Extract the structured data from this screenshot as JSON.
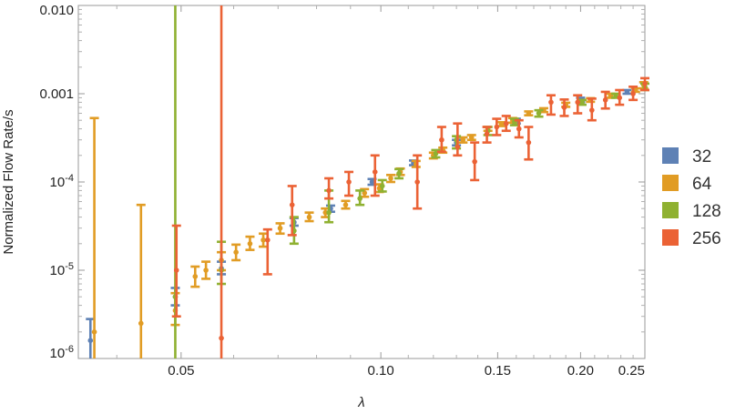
{
  "chart_data": {
    "type": "scatter",
    "xlabel": "λ",
    "ylabel": "Normalized Flow Rate/s",
    "x_scale": "log",
    "y_scale": "log",
    "xlim": [
      0.035,
      0.25
    ],
    "ylim": [
      1e-06,
      0.01
    ],
    "x_ticks": [
      {
        "value": 0.05,
        "label": "0.05"
      },
      {
        "value": 0.1,
        "label": "0.10"
      },
      {
        "value": 0.15,
        "label": "0.15"
      },
      {
        "value": 0.2,
        "label": "0.20"
      },
      {
        "value": 0.25,
        "label": "0.25"
      }
    ],
    "y_ticks": [
      {
        "value": 1e-06,
        "label": "10",
        "sup": "-6"
      },
      {
        "value": 1e-05,
        "label": "10",
        "sup": "-5"
      },
      {
        "value": 0.0001,
        "label": "10",
        "sup": "-4"
      },
      {
        "value": 0.001,
        "label": "0.001"
      },
      {
        "value": 0.01,
        "label": "0.010"
      }
    ],
    "grid": false,
    "legend_position": "right",
    "series": [
      {
        "name": "32",
        "color": "#5e81b5",
        "points": [
          {
            "x": 0.0365,
            "y": 1.6e-06,
            "lo": 1e-06,
            "hi": 2.8e-06
          },
          {
            "x": 0.049,
            "y": 5e-06,
            "lo": 4e-06,
            "hi": 6.3e-06
          },
          {
            "x": 0.0575,
            "y": 1.05e-05,
            "lo": 9e-06,
            "hi": 1.25e-05
          },
          {
            "x": 0.074,
            "y": 3.5e-05,
            "lo": 3.2e-05,
            "hi": 3.9e-05
          },
          {
            "x": 0.084,
            "y": 5e-05,
            "lo": 4.6e-05,
            "hi": 5.4e-05
          },
          {
            "x": 0.097,
            "y": 0.0001,
            "lo": 9.3e-05,
            "hi": 0.000108
          },
          {
            "x": 0.112,
            "y": 0.000165,
            "lo": 0.000155,
            "hi": 0.000175
          },
          {
            "x": 0.13,
            "y": 0.00028,
            "lo": 0.00026,
            "hi": 0.0003
          },
          {
            "x": 0.16,
            "y": 0.00049,
            "lo": 0.00046,
            "hi": 0.00052
          },
          {
            "x": 0.2,
            "y": 0.00085,
            "lo": 0.0008,
            "hi": 0.0009
          },
          {
            "x": 0.235,
            "y": 0.00105,
            "lo": 0.001,
            "hi": 0.0011
          }
        ]
      },
      {
        "name": "64",
        "color": "#e19c24",
        "points": [
          {
            "x": 0.037,
            "y": 2e-06,
            "lo": 1e-06,
            "hi": 0.00053
          },
          {
            "x": 0.0435,
            "y": 2.5e-06,
            "lo": 1e-06,
            "hi": 5.5e-05
          },
          {
            "x": 0.049,
            "y": 3.5e-06,
            "lo": 2.4e-06,
            "hi": 5.5e-06
          },
          {
            "x": 0.0525,
            "y": 8.5e-06,
            "lo": 6.5e-06,
            "hi": 1.1e-05
          },
          {
            "x": 0.0545,
            "y": 1e-05,
            "lo": 8e-06,
            "hi": 1.25e-05
          },
          {
            "x": 0.0575,
            "y": 1.3e-05,
            "lo": 1e-05,
            "hi": 1.6e-05
          },
          {
            "x": 0.0605,
            "y": 1.6e-05,
            "lo": 1.3e-05,
            "hi": 1.95e-05
          },
          {
            "x": 0.0635,
            "y": 2e-05,
            "lo": 1.7e-05,
            "hi": 2.4e-05
          },
          {
            "x": 0.0665,
            "y": 2.2e-05,
            "lo": 1.85e-05,
            "hi": 2.6e-05
          },
          {
            "x": 0.0705,
            "y": 3e-05,
            "lo": 2.6e-05,
            "hi": 3.4e-05
          },
          {
            "x": 0.078,
            "y": 4e-05,
            "lo": 3.6e-05,
            "hi": 4.5e-05
          },
          {
            "x": 0.0825,
            "y": 4.5e-05,
            "lo": 4e-05,
            "hi": 5e-05
          },
          {
            "x": 0.0885,
            "y": 5.5e-05,
            "lo": 5e-05,
            "hi": 6.1e-05
          },
          {
            "x": 0.0945,
            "y": 7.5e-05,
            "lo": 6.8e-05,
            "hi": 8.3e-05
          },
          {
            "x": 0.0995,
            "y": 8.5e-05,
            "lo": 7.7e-05,
            "hi": 9.4e-05
          },
          {
            "x": 0.1035,
            "y": 0.00011,
            "lo": 0.0001,
            "hi": 0.00012
          },
          {
            "x": 0.107,
            "y": 0.00013,
            "lo": 0.00012,
            "hi": 0.000142
          },
          {
            "x": 0.113,
            "y": 0.00016,
            "lo": 0.000148,
            "hi": 0.000173
          },
          {
            "x": 0.12,
            "y": 0.0002,
            "lo": 0.000185,
            "hi": 0.000215
          },
          {
            "x": 0.124,
            "y": 0.00023,
            "lo": 0.000215,
            "hi": 0.000245
          },
          {
            "x": 0.133,
            "y": 0.0003,
            "lo": 0.00028,
            "hi": 0.00032
          },
          {
            "x": 0.137,
            "y": 0.00032,
            "lo": 0.0003,
            "hi": 0.00034
          },
          {
            "x": 0.145,
            "y": 0.0004,
            "lo": 0.00038,
            "hi": 0.00042
          },
          {
            "x": 0.152,
            "y": 0.00045,
            "lo": 0.00043,
            "hi": 0.000475
          },
          {
            "x": 0.158,
            "y": 0.0005,
            "lo": 0.00047,
            "hi": 0.00053
          },
          {
            "x": 0.167,
            "y": 0.0006,
            "lo": 0.00057,
            "hi": 0.00063
          },
          {
            "x": 0.176,
            "y": 0.00065,
            "lo": 0.00062,
            "hi": 0.000685
          },
          {
            "x": 0.19,
            "y": 0.00075,
            "lo": 0.00071,
            "hi": 0.00079
          },
          {
            "x": 0.207,
            "y": 0.00085,
            "lo": 0.00081,
            "hi": 0.00089
          },
          {
            "x": 0.222,
            "y": 0.00095,
            "lo": 0.0009,
            "hi": 0.001
          },
          {
            "x": 0.242,
            "y": 0.0011,
            "lo": 0.00105,
            "hi": 0.00115
          },
          {
            "x": 0.249,
            "y": 0.00125,
            "lo": 0.00115,
            "hi": 0.00135
          }
        ]
      },
      {
        "name": "128",
        "color": "#8fb131",
        "points": [
          {
            "x": 0.049,
            "y": 5e-06,
            "lo": 1e-06,
            "hi": 0.01
          },
          {
            "x": 0.0575,
            "y": 1e-05,
            "lo": 7e-06,
            "hi": 2.1e-05
          },
          {
            "x": 0.074,
            "y": 2.8e-05,
            "lo": 2e-05,
            "hi": 4e-05
          },
          {
            "x": 0.0835,
            "y": 4.5e-05,
            "lo": 3.5e-05,
            "hi": 8e-05
          },
          {
            "x": 0.093,
            "y": 6.5e-05,
            "lo": 5.5e-05,
            "hi": 8e-05
          },
          {
            "x": 0.1005,
            "y": 9e-05,
            "lo": 7.8e-05,
            "hi": 0.000105
          },
          {
            "x": 0.1065,
            "y": 0.000125,
            "lo": 0.00011,
            "hi": 0.00014
          },
          {
            "x": 0.121,
            "y": 0.00021,
            "lo": 0.00019,
            "hi": 0.00023
          },
          {
            "x": 0.13,
            "y": 0.0003,
            "lo": 0.00024,
            "hi": 0.00033
          },
          {
            "x": 0.145,
            "y": 0.00038,
            "lo": 0.00034,
            "hi": 0.00042
          },
          {
            "x": 0.159,
            "y": 0.00048,
            "lo": 0.00044,
            "hi": 0.00052
          },
          {
            "x": 0.173,
            "y": 0.0006,
            "lo": 0.00055,
            "hi": 0.00065
          },
          {
            "x": 0.201,
            "y": 0.0008,
            "lo": 0.00075,
            "hi": 0.00085
          },
          {
            "x": 0.226,
            "y": 0.00095,
            "lo": 0.0009,
            "hi": 0.001
          },
          {
            "x": 0.25,
            "y": 0.0012,
            "lo": 0.0011,
            "hi": 0.0013
          }
        ]
      },
      {
        "name": "256",
        "color": "#eb6235",
        "points": [
          {
            "x": 0.0492,
            "y": 1e-05,
            "lo": 3e-06,
            "hi": 3.2e-05
          },
          {
            "x": 0.0575,
            "y": 1.7e-06,
            "lo": 1e-06,
            "hi": 0.01
          },
          {
            "x": 0.0675,
            "y": 2.2e-05,
            "lo": 9e-06,
            "hi": 2.9e-05
          },
          {
            "x": 0.0735,
            "y": 5.5e-05,
            "lo": 2.5e-05,
            "hi": 9e-05
          },
          {
            "x": 0.0835,
            "y": 8e-05,
            "lo": 6.5e-05,
            "hi": 0.00011
          },
          {
            "x": 0.0895,
            "y": 0.0001,
            "lo": 7e-05,
            "hi": 0.00013
          },
          {
            "x": 0.098,
            "y": 0.00013,
            "lo": 7e-05,
            "hi": 0.0002
          },
          {
            "x": 0.1135,
            "y": 0.0001,
            "lo": 5e-05,
            "hi": 0.0002
          },
          {
            "x": 0.1235,
            "y": 0.0003,
            "lo": 0.00022,
            "hi": 0.00042
          },
          {
            "x": 0.1305,
            "y": 0.00025,
            "lo": 0.0002,
            "hi": 0.00046
          },
          {
            "x": 0.1385,
            "y": 0.00017,
            "lo": 0.000105,
            "hi": 0.00028
          },
          {
            "x": 0.1445,
            "y": 0.00035,
            "lo": 0.00028,
            "hi": 0.00042
          },
          {
            "x": 0.1495,
            "y": 0.00042,
            "lo": 0.00034,
            "hi": 0.00052
          },
          {
            "x": 0.1545,
            "y": 0.00046,
            "lo": 0.00038,
            "hi": 0.00056
          },
          {
            "x": 0.1615,
            "y": 0.0004,
            "lo": 0.00032,
            "hi": 0.0005
          },
          {
            "x": 0.167,
            "y": 0.00028,
            "lo": 0.00018,
            "hi": 0.00042
          },
          {
            "x": 0.1805,
            "y": 0.0008,
            "lo": 0.00058,
            "hi": 0.00096
          },
          {
            "x": 0.189,
            "y": 0.0007,
            "lo": 0.00056,
            "hi": 0.00086
          },
          {
            "x": 0.198,
            "y": 0.0008,
            "lo": 0.0006,
            "hi": 0.00096
          },
          {
            "x": 0.208,
            "y": 0.00065,
            "lo": 0.0005,
            "hi": 0.00088
          },
          {
            "x": 0.218,
            "y": 0.00085,
            "lo": 0.00068,
            "hi": 0.00105
          },
          {
            "x": 0.229,
            "y": 0.0009,
            "lo": 0.00075,
            "hi": 0.0011
          },
          {
            "x": 0.24,
            "y": 0.001,
            "lo": 0.00085,
            "hi": 0.0012
          },
          {
            "x": 0.25,
            "y": 0.0013,
            "lo": 0.0011,
            "hi": 0.0015
          }
        ]
      }
    ]
  }
}
